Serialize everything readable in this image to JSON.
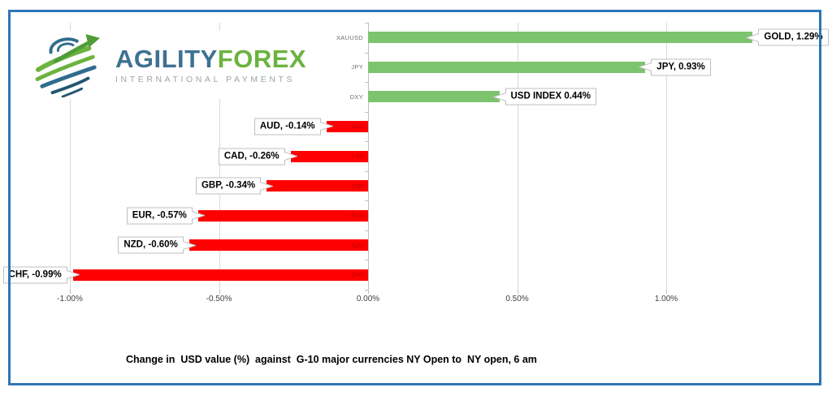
{
  "window": {
    "border_color": "#2E75B6",
    "background": "#FFFFFF"
  },
  "logo": {
    "brand_primary": "AGILITY",
    "brand_secondary": "FOREX",
    "tagline": "INTERNATIONAL PAYMENTS",
    "colors": {
      "primary_text": "#3E7191",
      "secondary_text": "#6CB33F",
      "tagline_text": "#9AA6AE",
      "globe_blue": "#2F6D8E",
      "globe_green": "#6CB33F",
      "globe_dark_green": "#4F9C38",
      "globe_dark_blue": "#23566F"
    }
  },
  "chart_data": {
    "type": "bar",
    "orientation": "horizontal",
    "title": "Change in  USD value (%)  against  G-10 major currencies NY Open to  NY open, 6 am",
    "categories": [
      "XAUUSD",
      "JPY",
      "DXY",
      "AUD",
      "CAD",
      "GBP",
      "EUR",
      "NZD",
      "CHF"
    ],
    "values": [
      1.29,
      0.93,
      0.44,
      -0.14,
      -0.26,
      -0.34,
      -0.57,
      -0.6,
      -0.99
    ],
    "data_labels": [
      "GOLD, 1.29%",
      "JPY, 0.93%",
      "USD INDEX 0.44%",
      "AUD, -0.14%",
      "CAD, -0.26%",
      "GBP, -0.34%",
      "EUR, -0.57%",
      "NZD, -0.60%",
      "CHF, -0.99%"
    ],
    "x_ticks": [
      {
        "label": "-1.00%",
        "value": -1.0
      },
      {
        "label": "-0.50%",
        "value": -0.5
      },
      {
        "label": "0.00%",
        "value": 0.0
      },
      {
        "label": "0.50%",
        "value": 0.5
      },
      {
        "label": "1.00%",
        "value": 1.0
      }
    ],
    "xlim": [
      -1.15,
      1.5
    ],
    "grid": true,
    "legend": false,
    "colors": {
      "positive_bar": "#7DC46E",
      "negative_bar": "#FF0000",
      "positive_category_label": "#6E6E6E",
      "negative_category_label": "#C00000",
      "gridline": "#D9D9D9",
      "axis": "#BFBFBF",
      "tick_label": "#404040",
      "callout_border": "#BFBFBF",
      "callout_text": "#000000"
    }
  }
}
